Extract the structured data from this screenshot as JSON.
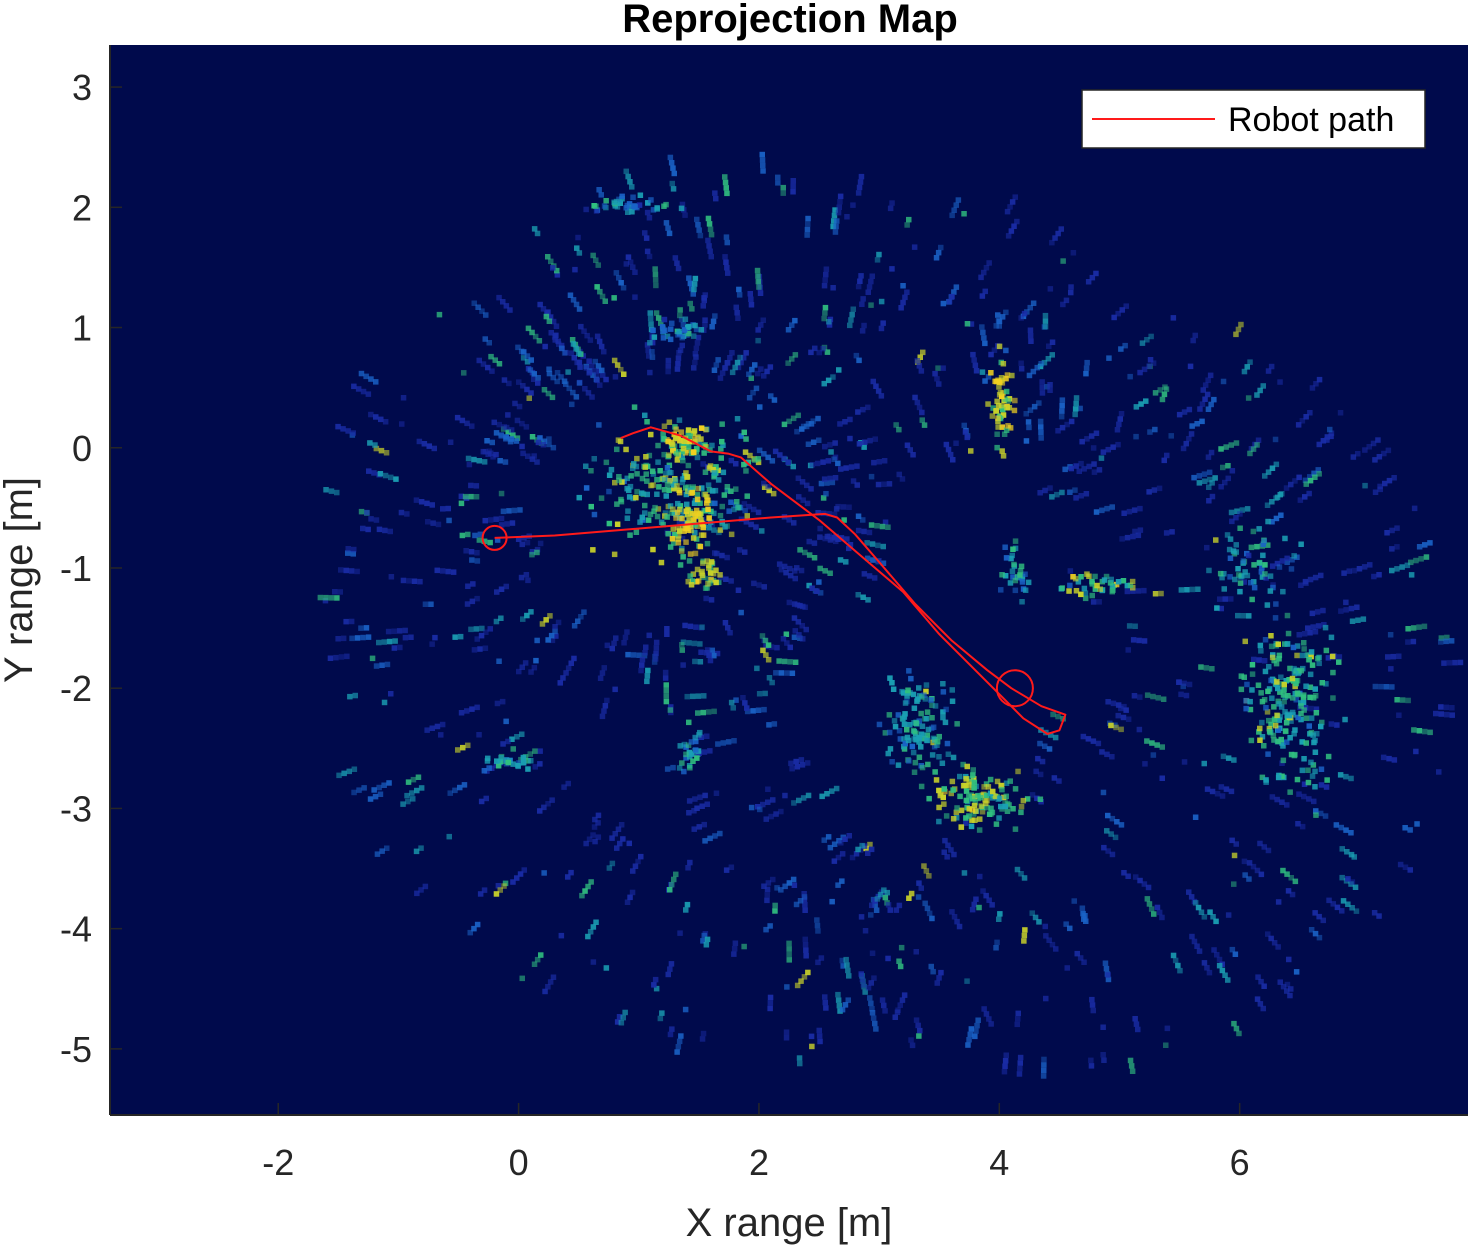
{
  "chart_data": {
    "type": "heatmap",
    "title": "Reprojection Map",
    "xlabel": "X range [m]",
    "ylabel": "Y range [m]",
    "xlim": [
      -3.4,
      7.9
    ],
    "ylim": [
      -5.55,
      3.35
    ],
    "xticks": [
      -2,
      0,
      2,
      4,
      6
    ],
    "yticks": [
      3,
      2,
      1,
      0,
      -1,
      -2,
      -3,
      -4,
      -5
    ],
    "grid": false,
    "legend": {
      "placement": "top-right",
      "entries": [
        "Robot path"
      ]
    },
    "colors": {
      "background": "#000a4c",
      "path": "#ff1a1a",
      "legend_box": "#ffffff"
    },
    "colormap": [
      "#1a2da8",
      "#1a63c8",
      "#1aa0b4",
      "#30c080",
      "#c8d22a",
      "#f0d020"
    ],
    "robot_path": [
      {
        "name": "Robot path",
        "x": [
          -0.2,
          0.3,
          0.9,
          1.5,
          2.1,
          2.55,
          2.65,
          2.8,
          3.0,
          3.3,
          3.6,
          3.9,
          4.1,
          4.35,
          4.55,
          4.5,
          4.4,
          4.2,
          4.0,
          3.8,
          3.5,
          3.2,
          2.85,
          2.5,
          2.1,
          1.85,
          1.75,
          1.6,
          1.35,
          1.1,
          0.95,
          0.85
        ],
        "y": [
          -0.75,
          -0.73,
          -0.68,
          -0.63,
          -0.58,
          -0.55,
          -0.58,
          -0.72,
          -0.95,
          -1.3,
          -1.6,
          -1.85,
          -2.0,
          -2.15,
          -2.22,
          -2.35,
          -2.38,
          -2.25,
          -2.05,
          -1.85,
          -1.55,
          -1.2,
          -0.9,
          -0.6,
          -0.3,
          -0.08,
          -0.05,
          -0.03,
          0.1,
          0.17,
          0.12,
          0.08
        ]
      }
    ],
    "markers": [
      {
        "shape": "circle",
        "x": -0.2,
        "y": -0.75,
        "r": 0.1
      },
      {
        "shape": "circle",
        "x": 4.13,
        "y": -2.0,
        "r": 0.15
      }
    ],
    "intensity_clusters": [
      {
        "x": 1.3,
        "y": -0.3,
        "rx": 0.9,
        "ry": 0.8,
        "n": 260,
        "level": 0.55
      },
      {
        "x": 1.4,
        "y": -0.6,
        "rx": 0.3,
        "ry": 0.4,
        "n": 60,
        "level": 0.85
      },
      {
        "x": 1.35,
        "y": 0.05,
        "rx": 0.25,
        "ry": 0.2,
        "n": 40,
        "level": 0.8
      },
      {
        "x": 1.5,
        "y": -1.0,
        "rx": 0.2,
        "ry": 0.2,
        "n": 30,
        "level": 0.7
      },
      {
        "x": 4.0,
        "y": 0.4,
        "rx": 0.15,
        "ry": 0.5,
        "n": 60,
        "level": 0.75
      },
      {
        "x": 3.8,
        "y": -2.9,
        "rx": 0.5,
        "ry": 0.35,
        "n": 120,
        "level": 0.65
      },
      {
        "x": 3.3,
        "y": -2.3,
        "rx": 0.4,
        "ry": 0.6,
        "n": 120,
        "level": 0.45
      },
      {
        "x": 6.4,
        "y": -2.1,
        "rx": 0.5,
        "ry": 1.0,
        "n": 220,
        "level": 0.5
      },
      {
        "x": 6.1,
        "y": -1.0,
        "rx": 0.5,
        "ry": 0.5,
        "n": 60,
        "level": 0.4
      },
      {
        "x": 4.8,
        "y": -1.1,
        "rx": 0.4,
        "ry": 0.15,
        "n": 40,
        "level": 0.6
      },
      {
        "x": 4.1,
        "y": -1.0,
        "rx": 0.15,
        "ry": 0.35,
        "n": 30,
        "level": 0.45
      },
      {
        "x": 1.3,
        "y": 1.0,
        "rx": 0.3,
        "ry": 0.15,
        "n": 30,
        "level": 0.35
      },
      {
        "x": 0.9,
        "y": 2.05,
        "rx": 0.5,
        "ry": 0.1,
        "n": 40,
        "level": 0.3
      },
      {
        "x": -0.1,
        "y": -2.6,
        "rx": 0.3,
        "ry": 0.15,
        "n": 25,
        "level": 0.4
      },
      {
        "x": 1.4,
        "y": -2.5,
        "rx": 0.15,
        "ry": 0.3,
        "n": 25,
        "level": 0.4
      }
    ],
    "sparse_rings": [
      {
        "cx": 2.2,
        "cy": -1.3,
        "r": 3.6,
        "n": 420
      },
      {
        "cx": 4.4,
        "cy": -1.9,
        "r": 3.1,
        "n": 320
      },
      {
        "cx": 1.2,
        "cy": -0.4,
        "r": 1.7,
        "n": 180
      }
    ]
  }
}
